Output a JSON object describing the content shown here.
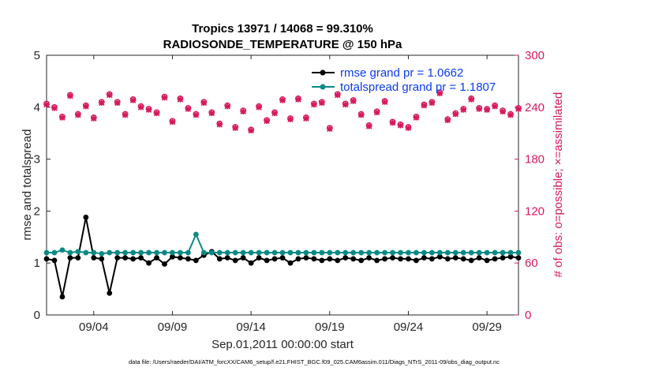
{
  "chart_data": {
    "type": "line",
    "title": "Tropics 13971 / 14068 = 99.310%",
    "subtitle": "RADIOSONDE_TEMPERATURE @ 150 hPa",
    "xlabel": "Sep.01,2011 00:00:00 start",
    "ylabel": "rmse and totalspread",
    "ylabel_right": "# of obs: o=possible; ×=assimilated",
    "footer": "data file: /Users/raeder/DAI/ATM_forcXX/CAM6_setup/f.e21.FHIST_BGC.f09_025.CAM6assim.011/Diags_NTrS_2011-09/obs_diag_output.nc",
    "xlim": [
      1,
      31
    ],
    "ylim": [
      0,
      5
    ],
    "ylim_right": [
      0,
      300
    ],
    "x_tick_values": [
      4,
      9,
      14,
      19,
      24,
      29
    ],
    "x_tick_labels": [
      "09/04",
      "09/09",
      "09/14",
      "09/19",
      "09/24",
      "09/29"
    ],
    "y_tick_labels": [
      "0",
      "1",
      "2",
      "3",
      "4",
      "5"
    ],
    "y_right_tick_labels": [
      "0",
      "60",
      "120",
      "180",
      "240",
      "300"
    ],
    "colors": {
      "rmse": "#000000",
      "totalspread": "#0a8a84",
      "obs": "#d6195c",
      "legend_text": "#0a3cf0"
    },
    "x": [
      1.0,
      1.5,
      2.0,
      2.5,
      3.0,
      3.5,
      4.0,
      4.5,
      5.0,
      5.5,
      6.0,
      6.5,
      7.0,
      7.5,
      8.0,
      8.5,
      9.0,
      9.5,
      10.0,
      10.5,
      11.0,
      11.5,
      12.0,
      12.5,
      13.0,
      13.5,
      14.0,
      14.5,
      15.0,
      15.5,
      16.0,
      16.5,
      17.0,
      17.5,
      18.0,
      18.5,
      19.0,
      19.5,
      20.0,
      20.5,
      21.0,
      21.5,
      22.0,
      22.5,
      23.0,
      23.5,
      24.0,
      24.5,
      25.0,
      25.5,
      26.0,
      26.5,
      27.0,
      27.5,
      28.0,
      28.5,
      29.0,
      29.5,
      30.0,
      30.5,
      31.0
    ],
    "series": [
      {
        "name": "rmse",
        "legend": "rmse grand pr = 1.0662",
        "values": [
          1.08,
          1.05,
          0.35,
          1.1,
          1.1,
          1.88,
          1.1,
          1.08,
          0.42,
          1.1,
          1.1,
          1.08,
          1.1,
          1.0,
          1.1,
          0.98,
          1.12,
          1.1,
          1.08,
          1.05,
          1.15,
          1.22,
          1.08,
          1.1,
          1.05,
          1.1,
          1.0,
          1.1,
          1.05,
          1.08,
          1.1,
          1.0,
          1.08,
          1.1,
          1.08,
          1.05,
          1.08,
          1.05,
          1.1,
          1.08,
          1.05,
          1.1,
          1.05,
          1.08,
          1.1,
          1.08,
          1.08,
          1.05,
          1.1,
          1.08,
          1.12,
          1.08,
          1.1,
          1.08,
          1.05,
          1.1,
          1.05,
          1.08,
          1.1,
          1.12,
          1.1
        ]
      },
      {
        "name": "totalspread",
        "legend": "totalspread grand pr = 1.1807",
        "values": [
          1.2,
          1.2,
          1.25,
          1.2,
          1.22,
          1.2,
          1.2,
          1.18,
          1.2,
          1.2,
          1.2,
          1.2,
          1.2,
          1.2,
          1.2,
          1.2,
          1.2,
          1.2,
          1.2,
          1.55,
          1.2,
          1.2,
          1.2,
          1.2,
          1.2,
          1.2,
          1.2,
          1.2,
          1.2,
          1.2,
          1.2,
          1.2,
          1.2,
          1.2,
          1.2,
          1.2,
          1.2,
          1.2,
          1.2,
          1.2,
          1.2,
          1.2,
          1.2,
          1.2,
          1.2,
          1.2,
          1.2,
          1.2,
          1.2,
          1.2,
          1.2,
          1.2,
          1.2,
          1.2,
          1.2,
          1.2,
          1.2,
          1.2,
          1.2,
          1.2,
          1.2
        ]
      }
    ],
    "obs_possible": [
      244,
      240,
      229,
      254,
      232,
      242,
      228,
      246,
      255,
      246,
      232,
      249,
      241,
      238,
      234,
      252,
      224,
      250,
      239,
      232,
      246,
      234,
      221,
      242,
      217,
      236,
      214,
      241,
      225,
      234,
      249,
      227,
      250,
      228,
      244,
      246,
      216,
      255,
      244,
      248,
      232,
      219,
      235,
      247,
      223,
      220,
      217,
      229,
      243,
      246,
      257,
      226,
      233,
      238,
      250,
      239,
      238,
      242,
      236,
      232,
      239
    ],
    "obs_assimilated": [
      243,
      239,
      228,
      253,
      231,
      241,
      227,
      245,
      254,
      245,
      231,
      248,
      240,
      237,
      233,
      251,
      223,
      249,
      238,
      231,
      245,
      233,
      220,
      241,
      216,
      235,
      213,
      240,
      224,
      233,
      248,
      226,
      249,
      227,
      243,
      245,
      215,
      254,
      243,
      247,
      231,
      218,
      234,
      246,
      222,
      219,
      216,
      228,
      242,
      245,
      256,
      225,
      232,
      237,
      249,
      238,
      237,
      241,
      235,
      231,
      238
    ]
  }
}
